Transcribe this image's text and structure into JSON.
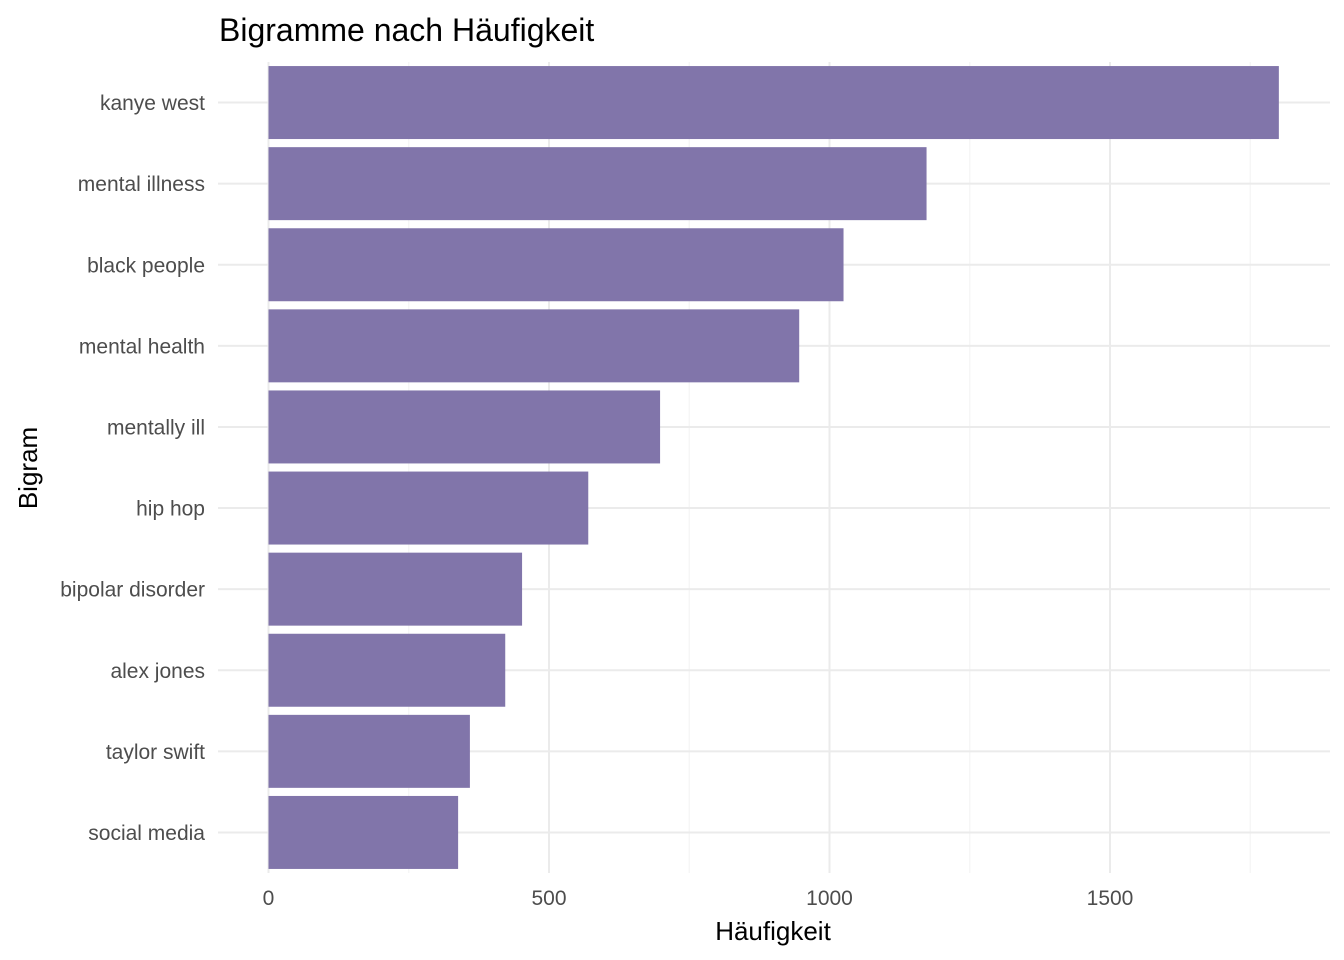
{
  "chart_data": {
    "type": "bar",
    "orientation": "horizontal",
    "title": "Bigramme nach Häufigkeit",
    "xlabel": "Häufigkeit",
    "ylabel": "Bigram",
    "categories": [
      "kanye west",
      "mental illness",
      "black people",
      "mental health",
      "mentally ill",
      "hip hop",
      "bipolar disorder",
      "alex jones",
      "taylor swift",
      "social media"
    ],
    "values": [
      1801,
      1173,
      1025,
      946,
      698,
      570,
      452,
      422,
      359,
      338
    ],
    "xlim": [
      0,
      1850
    ],
    "xticks": [
      0,
      500,
      1000,
      1500
    ],
    "xtick_labels": [
      "0",
      "500",
      "1000",
      "1500"
    ],
    "grid": true,
    "legend": "none",
    "bar_color": "#8175aa"
  }
}
